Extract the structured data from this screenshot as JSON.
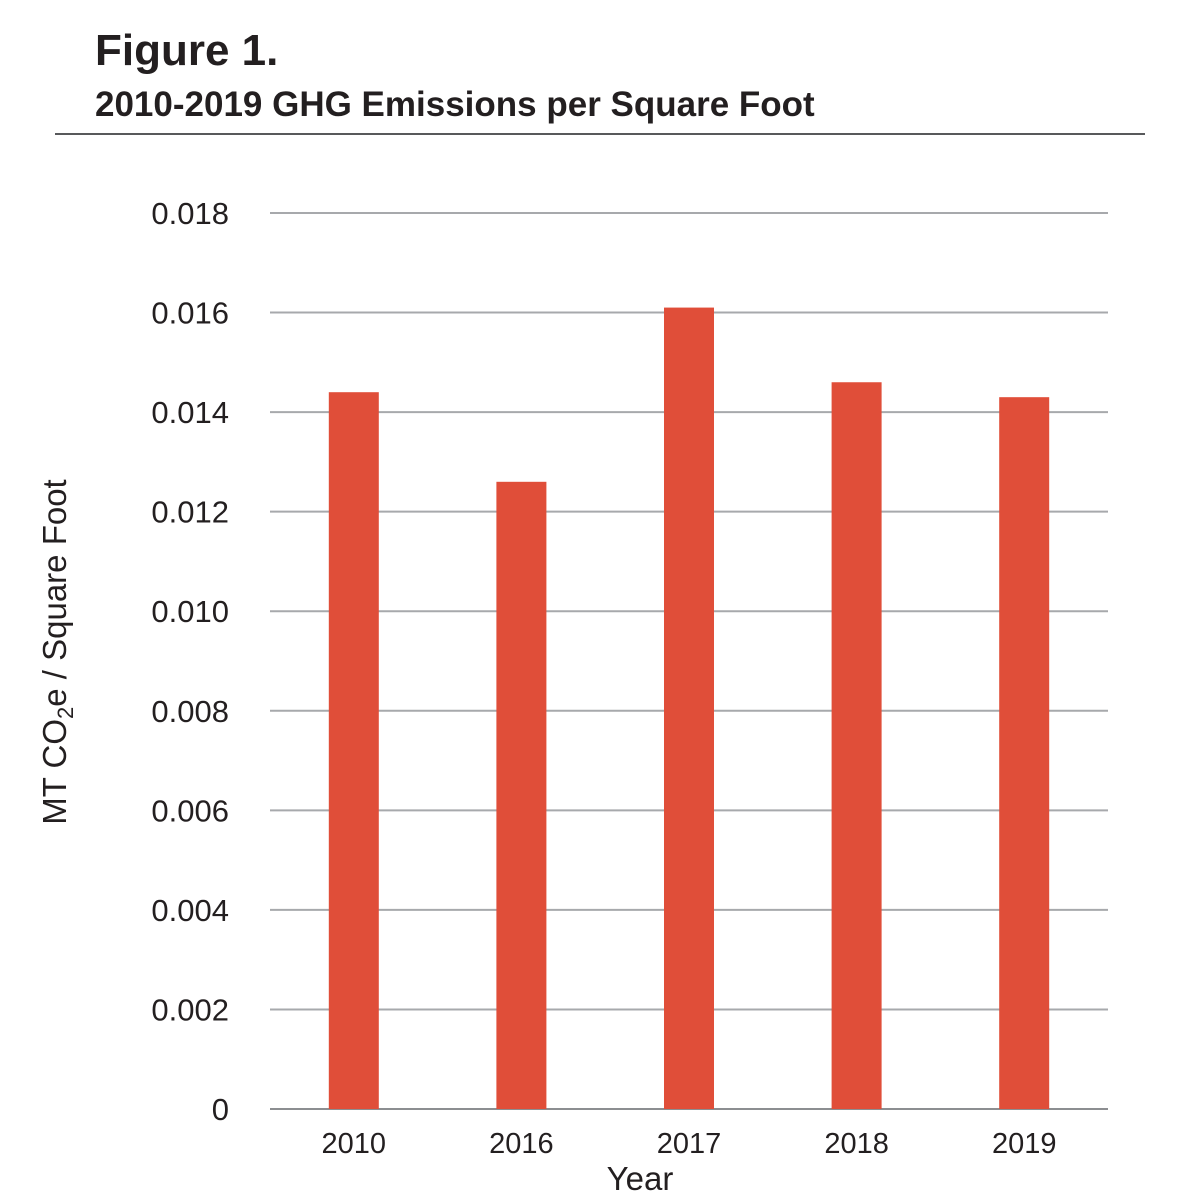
{
  "figure": {
    "label": "Figure 1.",
    "title": "2010-2019 GHG Emissions per Square Foot"
  },
  "chart_data": {
    "type": "bar",
    "categories": [
      "2010",
      "2016",
      "2017",
      "2018",
      "2019"
    ],
    "values": [
      0.0144,
      0.0126,
      0.0161,
      0.0146,
      0.0143
    ],
    "xlabel": "Year",
    "ylabel": {
      "prefix": "MT CO",
      "subscript": "2",
      "suffix": "e / Square Foot"
    },
    "ylim": [
      0,
      0.018
    ],
    "yticks": [
      "0",
      "0.002",
      "0.004",
      "0.006",
      "0.008",
      "0.010",
      "0.012",
      "0.014",
      "0.016",
      "0.018"
    ],
    "grid": true,
    "legend": "none",
    "bar_color": "#e04e39",
    "grid_color": "#a7a9ac"
  }
}
